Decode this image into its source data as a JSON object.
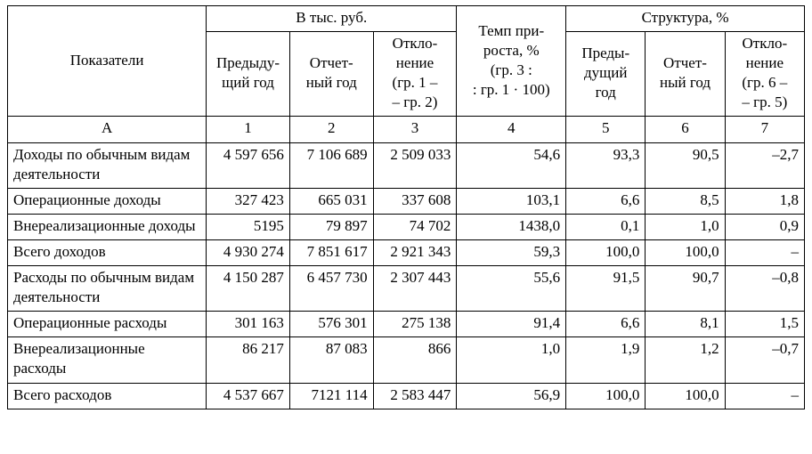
{
  "header": {
    "indicators": "Показатели",
    "group_rub": "В тыс. руб.",
    "group_struct": "Структура, %",
    "col_prev_year": "Предыду-\nщий год",
    "col_report_year": "Отчет-\nный год",
    "col_deviation": "Откло-\nнение\n(гр. 1 –\n– гр. 2)",
    "col_growth": "Темп при-\nроста, %\n(гр. 3 :\n: гр. 1 · 100)",
    "col_struct_prev": "Преды-\nдущий\nгод",
    "col_struct_report": "Отчет-\nный год",
    "col_struct_dev": "Откло-\nнение\n(гр. 6 –\n– гр. 5)"
  },
  "colnums": {
    "a": "А",
    "c1": "1",
    "c2": "2",
    "c3": "3",
    "c4": "4",
    "c5": "5",
    "c6": "6",
    "c7": "7"
  },
  "rows": [
    {
      "label": "Доходы по обычным видам деятельности",
      "c1": "4 597 656",
      "c2": "7 106 689",
      "c3": "2 509 033",
      "c4": "54,6",
      "c5": "93,3",
      "c6": "90,5",
      "c7": "–2,7"
    },
    {
      "label": "Операционные доходы",
      "c1": "327 423",
      "c2": "665 031",
      "c3": "337 608",
      "c4": "103,1",
      "c5": "6,6",
      "c6": "8,5",
      "c7": "1,8"
    },
    {
      "label": "Внереализационные доходы",
      "c1": "5195",
      "c2": "79 897",
      "c3": "74 702",
      "c4": "1438,0",
      "c5": "0,1",
      "c6": "1,0",
      "c7": "0,9"
    },
    {
      "label": "Всего доходов",
      "c1": "4 930 274",
      "c2": "7 851 617",
      "c3": "2 921 343",
      "c4": "59,3",
      "c5": "100,0",
      "c6": "100,0",
      "c7": "–"
    },
    {
      "label": "Расходы по обычным видам деятельности",
      "c1": "4 150 287",
      "c2": "6 457 730",
      "c3": "2 307 443",
      "c4": "55,6",
      "c5": "91,5",
      "c6": "90,7",
      "c7": "–0,8"
    },
    {
      "label": "Операционные расходы",
      "c1": "301 163",
      "c2": "576 301",
      "c3": "275 138",
      "c4": "91,4",
      "c5": "6,6",
      "c6": "8,1",
      "c7": "1,5"
    },
    {
      "label": "Внереализационные расходы",
      "c1": "86 217",
      "c2": "87 083",
      "c3": "866",
      "c4": "1,0",
      "c5": "1,9",
      "c6": "1,2",
      "c7": "–0,7"
    },
    {
      "label": "Всего расходов",
      "c1": "4 537 667",
      "c2": "7121 114",
      "c3": "2 583 447",
      "c4": "56,9",
      "c5": "100,0",
      "c6": "100,0",
      "c7": "–"
    }
  ]
}
